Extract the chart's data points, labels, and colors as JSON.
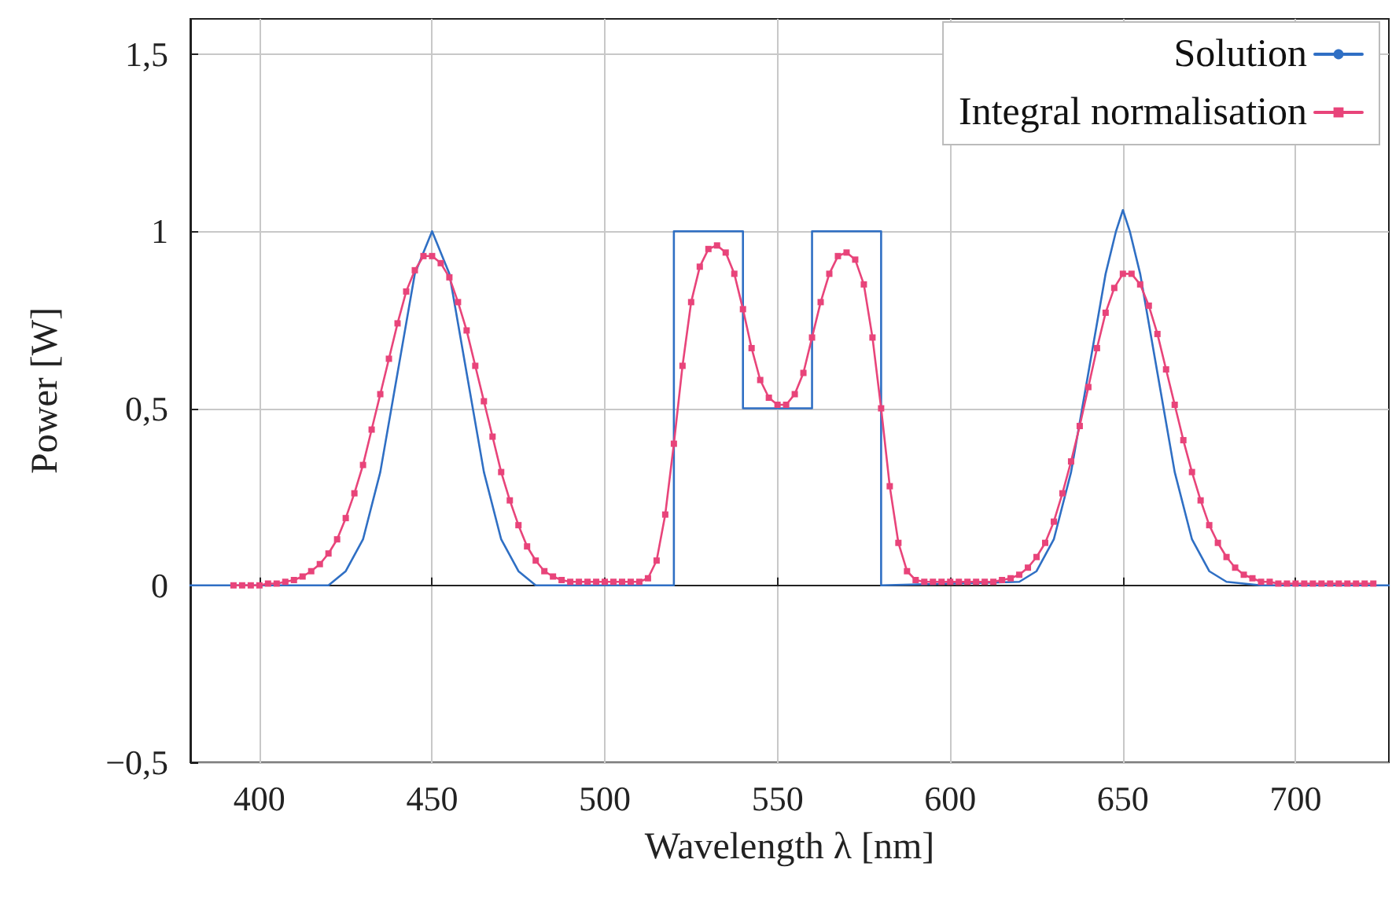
{
  "chart_data": {
    "type": "line",
    "xlabel": "Wavelength λ [nm]",
    "ylabel": "Power [W]",
    "xlim": [
      380,
      727
    ],
    "xticks": [
      400,
      450,
      500,
      550,
      600,
      650,
      700
    ],
    "ylim": [
      -0.5,
      1.6
    ],
    "yticks": [
      {
        "value": -0.5,
        "label": "−0,5"
      },
      {
        "value": 0,
        "label": "0"
      },
      {
        "value": 0.5,
        "label": "0,5"
      },
      {
        "value": 1,
        "label": "1"
      },
      {
        "value": 1.5,
        "label": "1,5"
      }
    ],
    "grid": true,
    "legend": "top right",
    "series": [
      {
        "name": "Solution",
        "color": "#2f6fc4",
        "marker": "none",
        "x": [
          380,
          420,
          425,
          430,
          435,
          440,
          445,
          450,
          455,
          460,
          465,
          470,
          475,
          480,
          520,
          520,
          540,
          540,
          560,
          560,
          580,
          580,
          620,
          625,
          630,
          635,
          640,
          645,
          648,
          650,
          652,
          655,
          660,
          665,
          670,
          675,
          680,
          690,
          727
        ],
        "values": [
          0,
          0,
          0.04,
          0.13,
          0.32,
          0.6,
          0.88,
          1,
          0.88,
          0.6,
          0.32,
          0.13,
          0.04,
          0,
          0,
          1,
          1,
          0.5,
          0.5,
          1,
          1,
          0,
          0.01,
          0.04,
          0.13,
          0.32,
          0.6,
          0.88,
          1,
          1.06,
          1,
          0.88,
          0.6,
          0.32,
          0.13,
          0.04,
          0.01,
          0,
          0
        ]
      },
      {
        "name": "Integral normalisation",
        "color": "#e8447a",
        "marker": "square",
        "x": [
          392.5,
          395,
          397.5,
          400,
          402.5,
          405,
          407.5,
          410,
          412.5,
          415,
          417.5,
          420,
          422.5,
          425,
          427.5,
          430,
          432.5,
          435,
          437.5,
          440,
          442.5,
          445,
          447.5,
          450,
          452.5,
          455,
          457.5,
          460,
          462.5,
          465,
          467.5,
          470,
          472.5,
          475,
          477.5,
          480,
          482.5,
          485,
          487.5,
          490,
          492.5,
          495,
          497.5,
          500,
          502.5,
          505,
          507.5,
          510,
          512.5,
          515,
          517.5,
          520,
          522.5,
          525,
          527.5,
          530,
          532.5,
          535,
          537.5,
          540,
          542.5,
          545,
          547.5,
          550,
          552.5,
          555,
          557.5,
          560,
          562.5,
          565,
          567.5,
          570,
          572.5,
          575,
          577.5,
          580,
          582.5,
          585,
          587.5,
          590,
          592.5,
          595,
          597.5,
          600,
          602.5,
          605,
          607.5,
          610,
          612.5,
          615,
          617.5,
          620,
          622.5,
          625,
          627.5,
          630,
          632.5,
          635,
          637.5,
          640,
          642.5,
          645,
          647.5,
          650,
          652.5,
          655,
          657.5,
          660,
          662.5,
          665,
          667.5,
          670,
          672.5,
          675,
          677.5,
          680,
          682.5,
          685,
          687.5,
          690,
          692.5,
          695,
          697.5,
          700,
          702.5,
          705,
          707.5,
          710,
          712.5,
          715,
          717.5,
          720,
          722.5
        ],
        "values": [
          0,
          0,
          0,
          0,
          0.005,
          0.005,
          0.01,
          0.015,
          0.025,
          0.04,
          0.06,
          0.09,
          0.13,
          0.19,
          0.26,
          0.34,
          0.44,
          0.54,
          0.64,
          0.74,
          0.83,
          0.89,
          0.93,
          0.93,
          0.91,
          0.87,
          0.8,
          0.72,
          0.62,
          0.52,
          0.42,
          0.32,
          0.24,
          0.17,
          0.11,
          0.07,
          0.04,
          0.025,
          0.015,
          0.01,
          0.01,
          0.01,
          0.01,
          0.01,
          0.01,
          0.01,
          0.01,
          0.01,
          0.02,
          0.07,
          0.2,
          0.4,
          0.62,
          0.8,
          0.9,
          0.95,
          0.96,
          0.94,
          0.88,
          0.78,
          0.67,
          0.58,
          0.53,
          0.51,
          0.51,
          0.54,
          0.6,
          0.7,
          0.8,
          0.88,
          0.93,
          0.94,
          0.92,
          0.85,
          0.7,
          0.5,
          0.28,
          0.12,
          0.04,
          0.015,
          0.01,
          0.01,
          0.01,
          0.01,
          0.01,
          0.01,
          0.01,
          0.01,
          0.01,
          0.015,
          0.02,
          0.03,
          0.05,
          0.08,
          0.12,
          0.18,
          0.26,
          0.35,
          0.45,
          0.56,
          0.67,
          0.77,
          0.84,
          0.88,
          0.88,
          0.85,
          0.79,
          0.71,
          0.61,
          0.51,
          0.41,
          0.32,
          0.24,
          0.17,
          0.12,
          0.08,
          0.05,
          0.03,
          0.02,
          0.01,
          0.01,
          0.005,
          0.005,
          0.005,
          0.005,
          0.005,
          0.005,
          0.005,
          0.005,
          0.005,
          0.005,
          0.005,
          0.005
        ]
      }
    ]
  }
}
